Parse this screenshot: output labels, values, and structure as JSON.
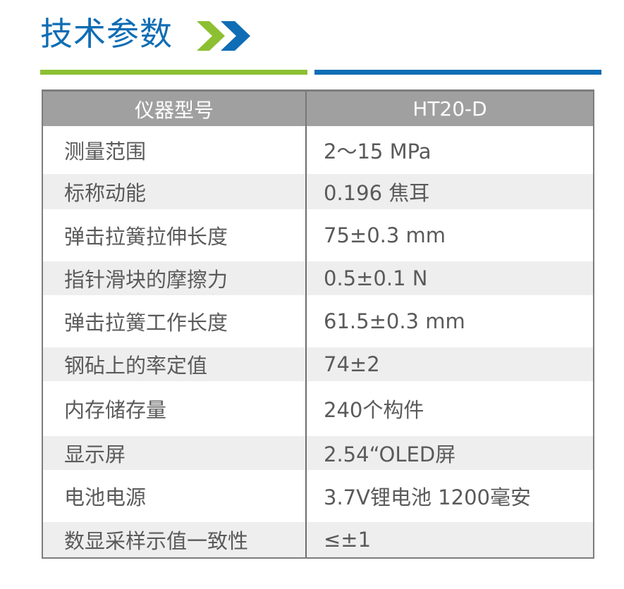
{
  "header": {
    "title": "技术参数",
    "arrow_icon": "double-chevron-right-icon",
    "colors": {
      "blue": "#0f6db5",
      "green": "#8cc032"
    }
  },
  "table": {
    "columns": [
      "仪器型号",
      "HT20-D"
    ],
    "rows": [
      {
        "label": "测量范围",
        "value": "2～15 MPa"
      },
      {
        "label": "标称动能",
        "value": "0.196 焦耳"
      },
      {
        "label": "弹击拉簧拉伸长度",
        "value": "75±0.3 mm"
      },
      {
        "label": "指针滑块的摩擦力",
        "value": "0.5±0.1 N"
      },
      {
        "label": "弹击拉簧工作长度",
        "value": "61.5±0.3 mm"
      },
      {
        "label": "钢砧上的率定值",
        "value": "74±2"
      },
      {
        "label": "内存储存量",
        "value": "240个构件"
      },
      {
        "label": "显示屏",
        "value": "2.54“OLED屏"
      },
      {
        "label": "电池电源",
        "value": "3.7V锂电池 1200毫安"
      },
      {
        "label": "数显采样示值一致性",
        "value": "≤±1"
      }
    ]
  }
}
